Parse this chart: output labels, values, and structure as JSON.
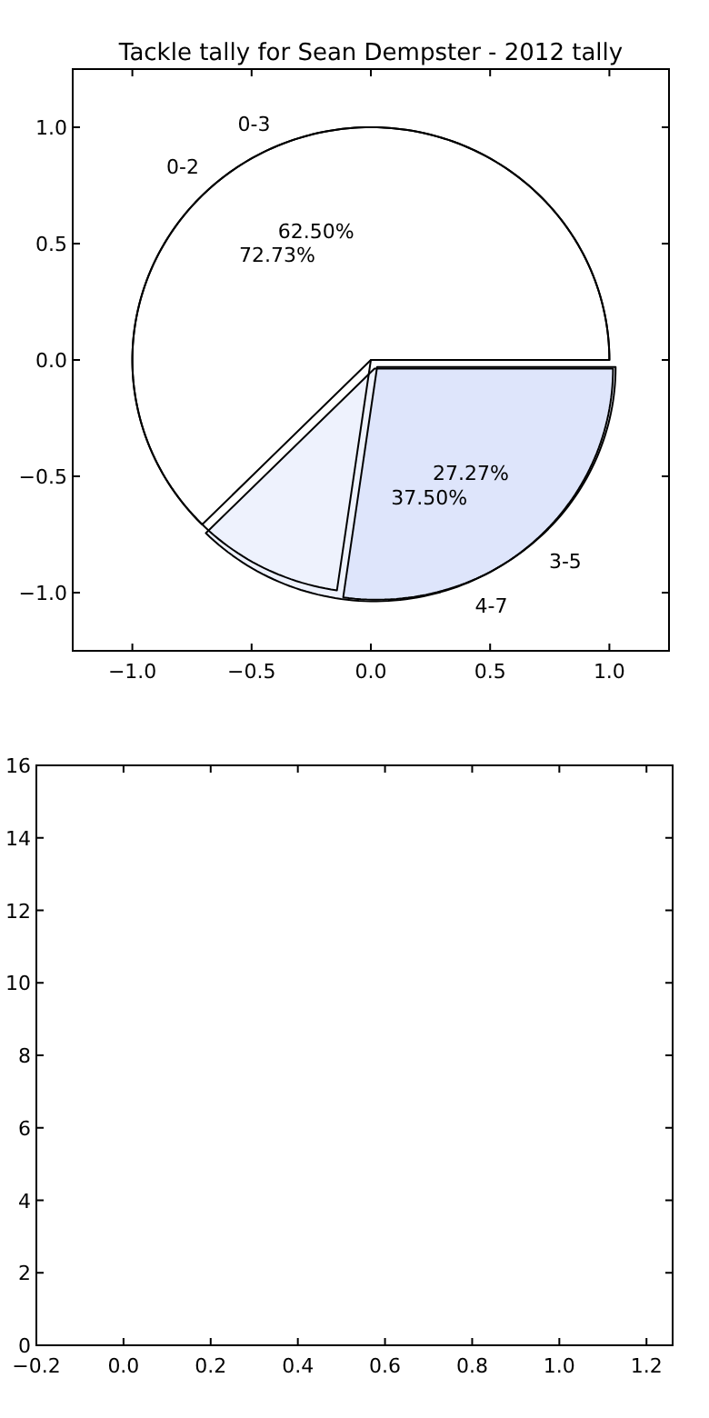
{
  "chart_data": [
    {
      "type": "pie",
      "title": "Tackle tally for Sean Dempster - 2012 tally",
      "categories": [
        "0-2",
        "3-5"
      ],
      "values": [
        72.73,
        27.27
      ],
      "colors": [
        "#ffffff",
        "#eef2fd"
      ],
      "value_labels": [
        "72.73%",
        "27.27%"
      ]
    },
    {
      "type": "pie",
      "categories": [
        "0-3",
        "4-7"
      ],
      "values": [
        62.5,
        37.5
      ],
      "colors": [
        "#ffffff",
        "#eef2fd"
      ],
      "value_labels": [
        "62.50%",
        "37.50%"
      ]
    },
    {
      "type": "line",
      "xlim": [
        -1.25,
        1.25
      ],
      "ylim": [
        -1.25,
        1.25
      ],
      "xticks": [
        {
          "value": -1,
          "label": "−1.0"
        },
        {
          "value": -0.5,
          "label": "−0.5"
        },
        {
          "value": 0,
          "label": "0.0"
        },
        {
          "value": 0.5,
          "label": "0.5"
        },
        {
          "value": 1,
          "label": "1.0"
        }
      ],
      "yticks": [
        {
          "value": -1,
          "label": "−1.0"
        },
        {
          "value": -0.5,
          "label": "−0.5"
        },
        {
          "value": 0,
          "label": "0.0"
        },
        {
          "value": 0.5,
          "label": "0.5"
        },
        {
          "value": 1,
          "label": "1.0"
        }
      ]
    },
    {
      "type": "line",
      "xlim": [
        -0.2,
        1.26
      ],
      "ylim": [
        0,
        16
      ],
      "xticks": [
        {
          "value": -0.2,
          "label": "−0.2"
        },
        {
          "value": 0,
          "label": "0.0"
        },
        {
          "value": 0.2,
          "label": "0.2"
        },
        {
          "value": 0.4,
          "label": "0.4"
        },
        {
          "value": 0.6,
          "label": "0.6"
        },
        {
          "value": 0.8,
          "label": "0.8"
        },
        {
          "value": 1,
          "label": "1.0"
        },
        {
          "value": 1.2,
          "label": "1.2"
        }
      ],
      "yticks": [
        0,
        2,
        4,
        6,
        8,
        10,
        12,
        14,
        16
      ]
    }
  ]
}
